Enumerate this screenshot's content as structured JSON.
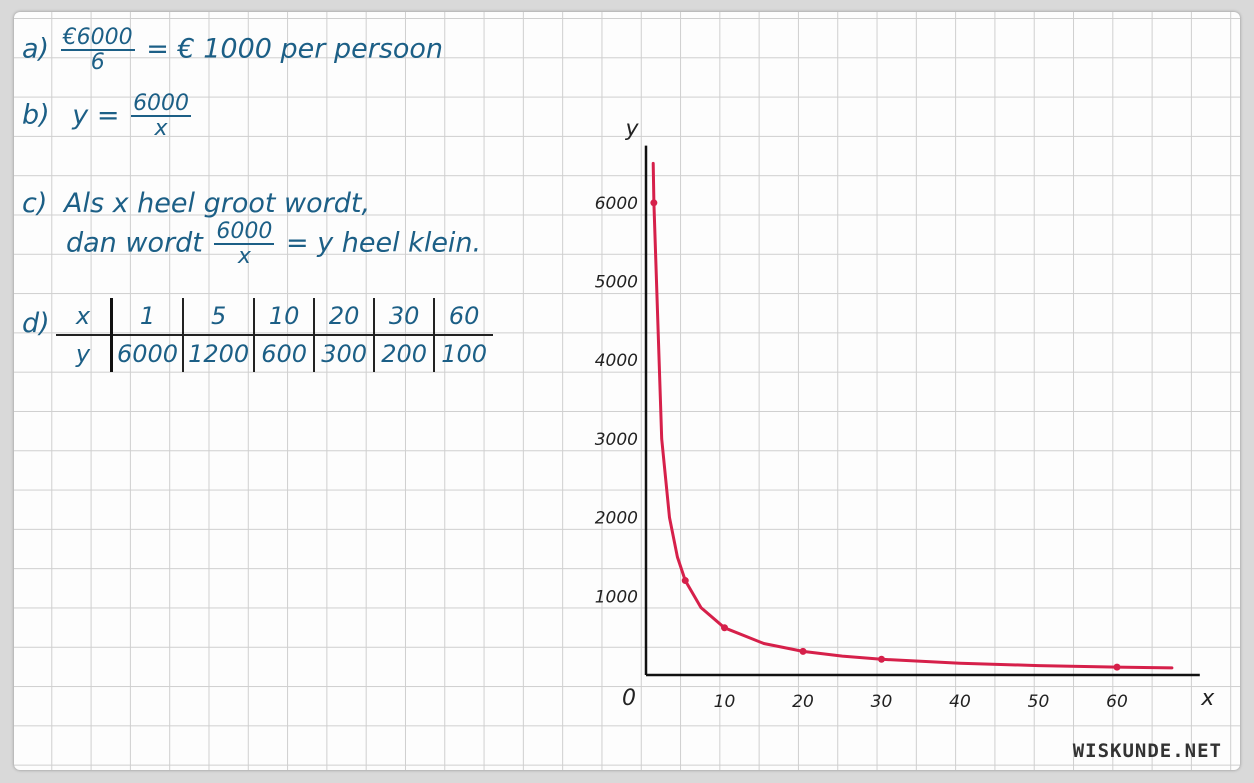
{
  "answers": {
    "a": {
      "label": "a)",
      "num": "€6000",
      "den": "6",
      "rest": "= € 1000 per persoon"
    },
    "b": {
      "label": "b)",
      "lhs": "y =",
      "num": "6000",
      "den": "x"
    },
    "c": {
      "label": "c)",
      "line1": "Als x heel groot wordt,",
      "line2_pre": "dan wordt",
      "num": "6000",
      "den": "x",
      "line2_post": "= y  heel klein."
    },
    "d": {
      "label": "d)"
    }
  },
  "table": {
    "rows": [
      [
        "x",
        "1",
        "5",
        "10",
        "20",
        "30",
        "60"
      ],
      [
        "y",
        "6000",
        "1200",
        "600",
        "300",
        "200",
        "100"
      ]
    ]
  },
  "chart_data": {
    "type": "line",
    "xlabel": "x",
    "ylabel": "y",
    "xlim": [
      0,
      68
    ],
    "ylim": [
      0,
      6600
    ],
    "x_ticks": [
      "10",
      "20",
      "30",
      "40",
      "50",
      "60"
    ],
    "y_ticks": [
      "1000",
      "2000",
      "3000",
      "4000",
      "5000",
      "6000"
    ],
    "origin_label": "0",
    "series": [
      {
        "color": "#d6204a",
        "points": [
          [
            0.92,
            6500
          ],
          [
            1,
            6000
          ],
          [
            2,
            3000
          ],
          [
            3,
            2000
          ],
          [
            4,
            1500
          ],
          [
            5,
            1200
          ],
          [
            7,
            857
          ],
          [
            10,
            600
          ],
          [
            15,
            400
          ],
          [
            20,
            300
          ],
          [
            25,
            240
          ],
          [
            30,
            200
          ],
          [
            40,
            150
          ],
          [
            50,
            120
          ],
          [
            60,
            100
          ],
          [
            67,
            90
          ]
        ],
        "marked": [
          [
            1,
            6000
          ],
          [
            5,
            1200
          ],
          [
            10,
            600
          ],
          [
            20,
            300
          ],
          [
            30,
            200
          ],
          [
            60,
            100
          ]
        ]
      }
    ],
    "grid": true
  },
  "watermark": "WISKUNDE.NET"
}
